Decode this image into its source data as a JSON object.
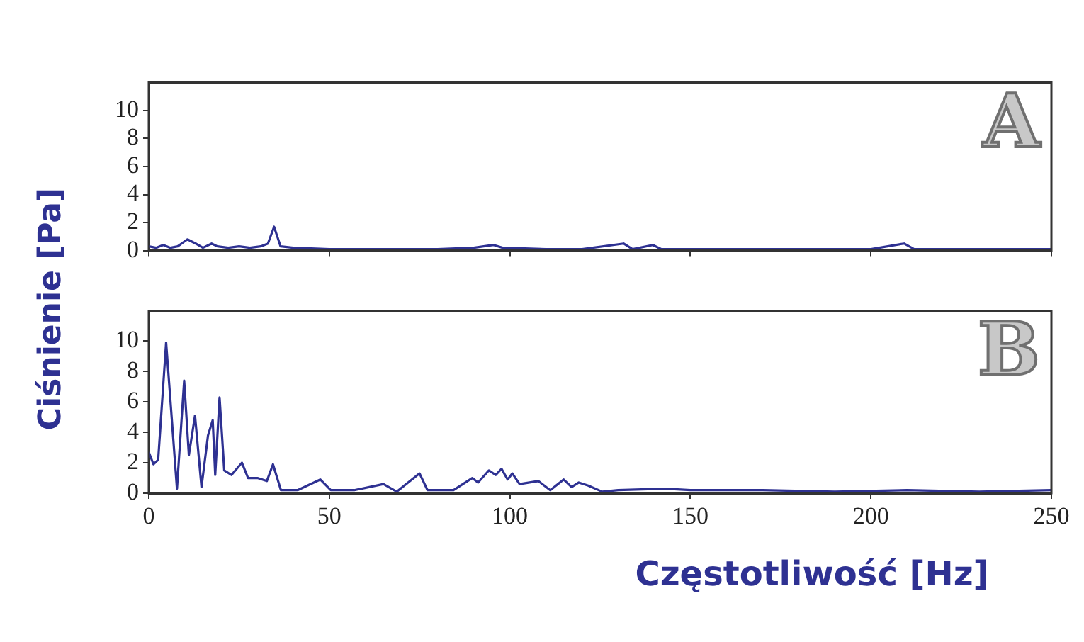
{
  "chart_data": [
    {
      "type": "line",
      "ylabel": "Ciśnienie [Pa]",
      "color": "#2e3192",
      "annotations": [
        "A"
      ],
      "tick_labels": "y",
      "xlim": [
        0,
        250
      ],
      "xticks": [
        0,
        50,
        100,
        150,
        200,
        250
      ],
      "ylim": [
        0,
        12
      ],
      "yticks": [
        0,
        2,
        4,
        6,
        8,
        10
      ],
      "x": [
        0,
        2,
        4,
        6,
        8,
        10.7,
        13,
        15,
        17.4,
        19,
        22,
        25,
        28,
        31,
        33,
        34.7,
        36.5,
        40,
        50,
        60,
        70,
        80,
        90,
        95.5,
        98,
        110,
        120,
        131.5,
        134,
        139.6,
        142,
        160,
        180,
        200,
        209.2,
        212,
        230,
        250
      ],
      "values": [
        0.3,
        0.2,
        0.4,
        0.2,
        0.3,
        0.8,
        0.5,
        0.2,
        0.5,
        0.3,
        0.2,
        0.3,
        0.2,
        0.3,
        0.5,
        1.7,
        0.3,
        0.2,
        0.1,
        0.1,
        0.1,
        0.1,
        0.2,
        0.4,
        0.2,
        0.1,
        0.1,
        0.5,
        0.1,
        0.4,
        0.1,
        0.1,
        0.1,
        0.1,
        0.5,
        0.1,
        0.1,
        0.1
      ]
    },
    {
      "type": "line",
      "xlabel": "Częstotliwość [Hz]",
      "color": "#2e3192",
      "annotations": [
        "B"
      ],
      "xlim": [
        0,
        250
      ],
      "xticks": [
        0,
        50,
        100,
        150,
        200,
        250
      ],
      "ylim": [
        0,
        12
      ],
      "yticks": [
        0,
        2,
        4,
        6,
        8,
        10
      ],
      "x": [
        0,
        1.3,
        2.6,
        4.8,
        7.8,
        9.8,
        11.1,
        12.8,
        14.6,
        16.4,
        17.7,
        18.4,
        19.6,
        20.9,
        22.9,
        25.8,
        27.5,
        30.1,
        32.7,
        34.4,
        36.6,
        41.2,
        47.5,
        50.4,
        56.9,
        65,
        68.7,
        75,
        77.2,
        84.4,
        89.6,
        91.2,
        94.2,
        96.1,
        97.7,
        99.4,
        100.7,
        102.7,
        107.9,
        111.2,
        114.9,
        117.1,
        119.1,
        121.7,
        125.6,
        130,
        143,
        150,
        170,
        190,
        210,
        230,
        250
      ],
      "values": [
        2.7,
        1.9,
        2.2,
        9.9,
        0.3,
        7.4,
        2.5,
        5.1,
        0.4,
        3.8,
        4.8,
        1.2,
        6.3,
        1.5,
        1.2,
        2.0,
        1.0,
        1.0,
        0.8,
        1.9,
        0.2,
        0.2,
        0.9,
        0.2,
        0.2,
        0.6,
        0.1,
        1.3,
        0.2,
        0.2,
        1.0,
        0.7,
        1.5,
        1.2,
        1.6,
        0.9,
        1.3,
        0.6,
        0.8,
        0.2,
        0.9,
        0.4,
        0.7,
        0.5,
        0.1,
        0.2,
        0.3,
        0.2,
        0.2,
        0.1,
        0.2,
        0.1,
        0.2
      ]
    }
  ]
}
